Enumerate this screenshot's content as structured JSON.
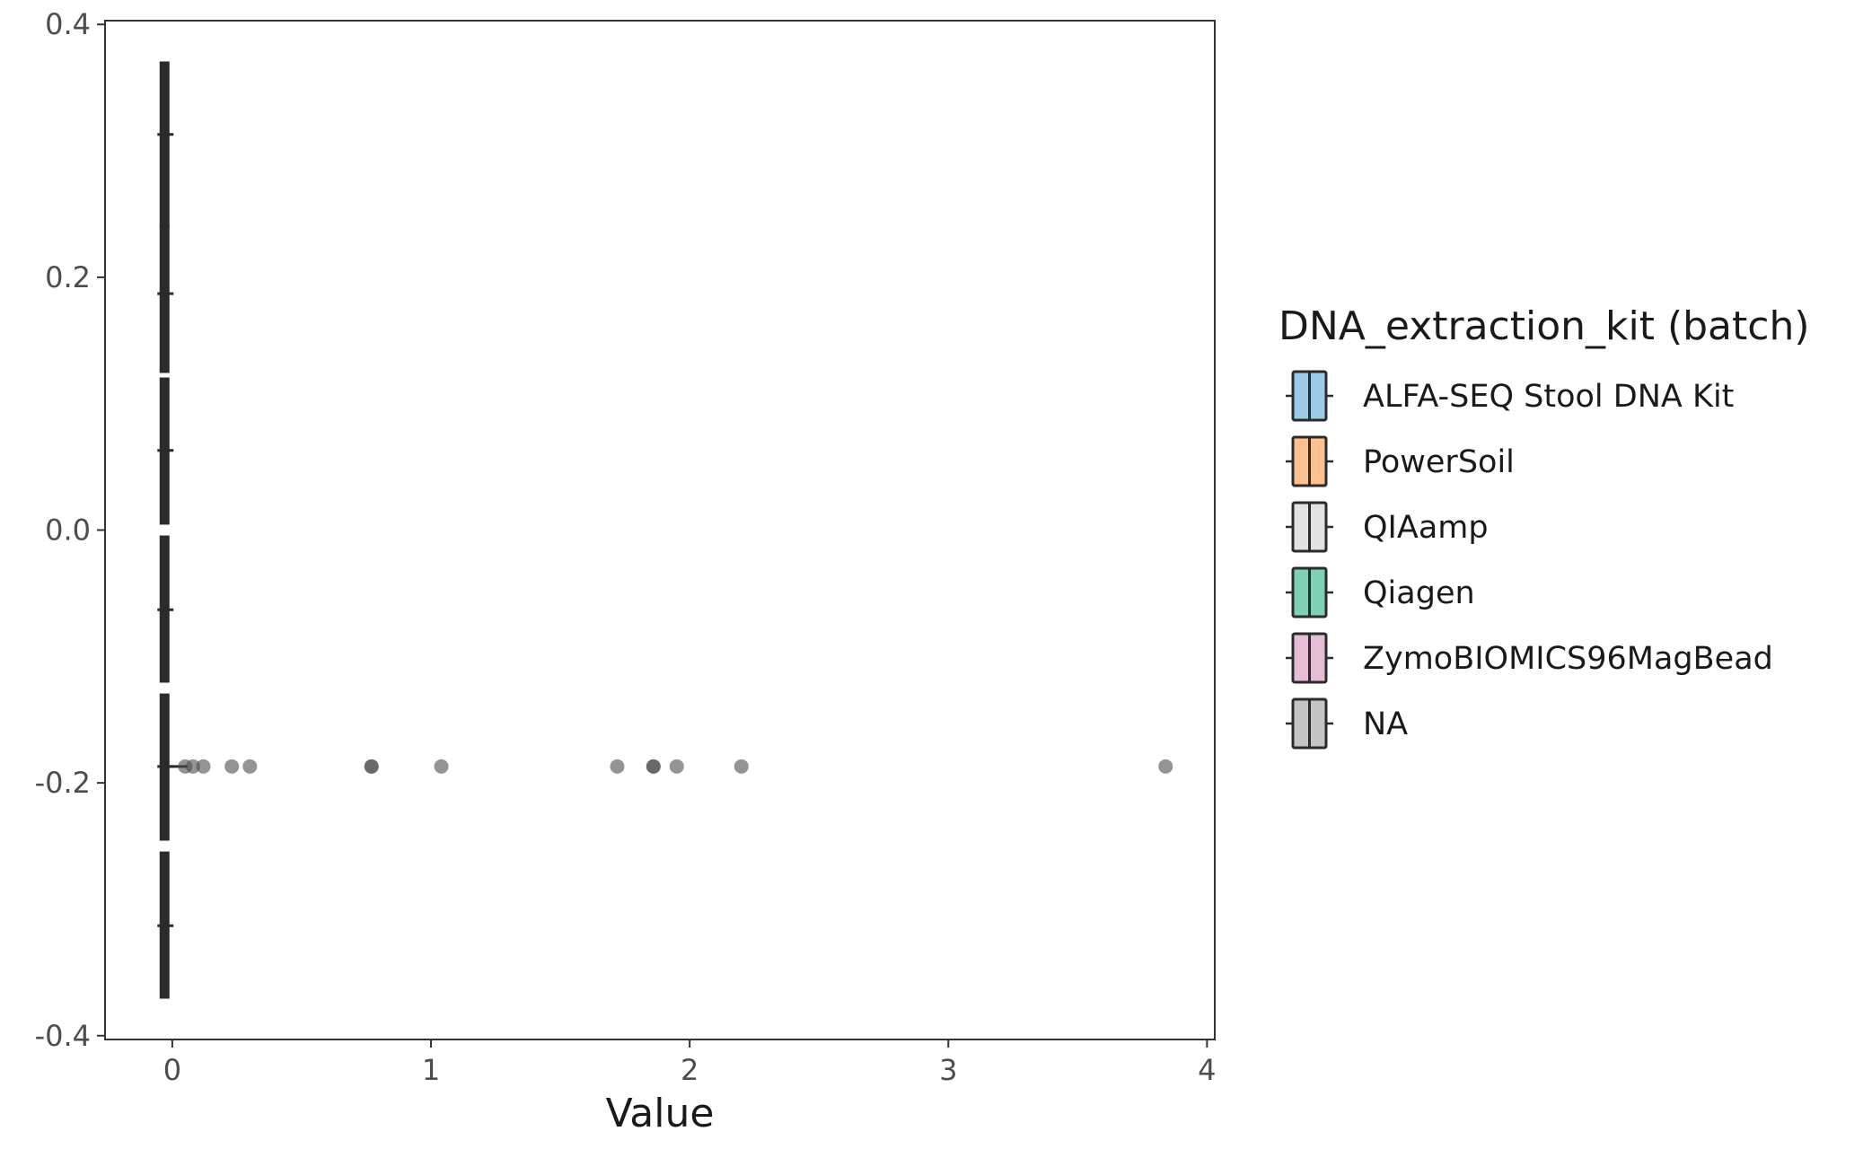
{
  "chart_data": {
    "type": "boxplot",
    "xlabel": "Value",
    "ylabel": "",
    "xlim": [
      -0.26,
      4.03
    ],
    "ylim": [
      -0.403,
      0.403
    ],
    "x_ticks": [
      0,
      1,
      2,
      3,
      4
    ],
    "x_tick_labels": [
      "0",
      "1",
      "2",
      "3",
      "4"
    ],
    "y_ticks": [
      -0.4,
      -0.2,
      0.0,
      0.2,
      0.4
    ],
    "y_tick_labels": [
      "-0.4",
      "-0.2",
      "0.0",
      "0.2",
      "0.4"
    ],
    "grid": false,
    "legend": {
      "title": "DNA_extraction_kit (batch)",
      "placement": "right",
      "entries": [
        {
          "label": "ALFA-SEQ Stool DNA Kit",
          "color": "#9ecae9"
        },
        {
          "label": "PowerSoil",
          "color": "#fdc18f"
        },
        {
          "label": "QIAamp",
          "color": "#e2e2e2"
        },
        {
          "label": "Qiagen",
          "color": "#7fd1b3"
        },
        {
          "label": "ZymoBIOMICS96MagBead",
          "color": "#e7bdd6"
        },
        {
          "label": "NA",
          "color": "#c4c4c4"
        }
      ]
    },
    "series": [
      {
        "name": "ALFA-SEQ Stool DNA Kit",
        "y_range": [
          0.24,
          0.37
        ],
        "median": -0.03,
        "whisker_y": 0.313
      },
      {
        "name": "PowerSoil",
        "y_range": [
          0.125,
          0.24
        ],
        "median": -0.03,
        "whisker_y": 0.187
      },
      {
        "name": "QIAamp",
        "y_range": [
          0.005,
          0.12
        ],
        "median": -0.03,
        "whisker_y": 0.063
      },
      {
        "name": "Qiagen",
        "y_range": [
          -0.12,
          -0.005
        ],
        "median": -0.03,
        "whisker_y": -0.063
      },
      {
        "name": "ZymoBIOMICS96MagBead",
        "y_range": [
          -0.245,
          -0.13
        ],
        "median": -0.03,
        "whisker_y": -0.187,
        "outliers": [
          0.05,
          0.08,
          0.12,
          0.23,
          0.3,
          0.77,
          0.77,
          1.04,
          1.72,
          1.86,
          1.86,
          1.95,
          2.2,
          3.84
        ]
      },
      {
        "name": "NA",
        "y_range": [
          -0.37,
          -0.255
        ],
        "median": -0.03,
        "whisker_y": -0.313
      }
    ]
  }
}
